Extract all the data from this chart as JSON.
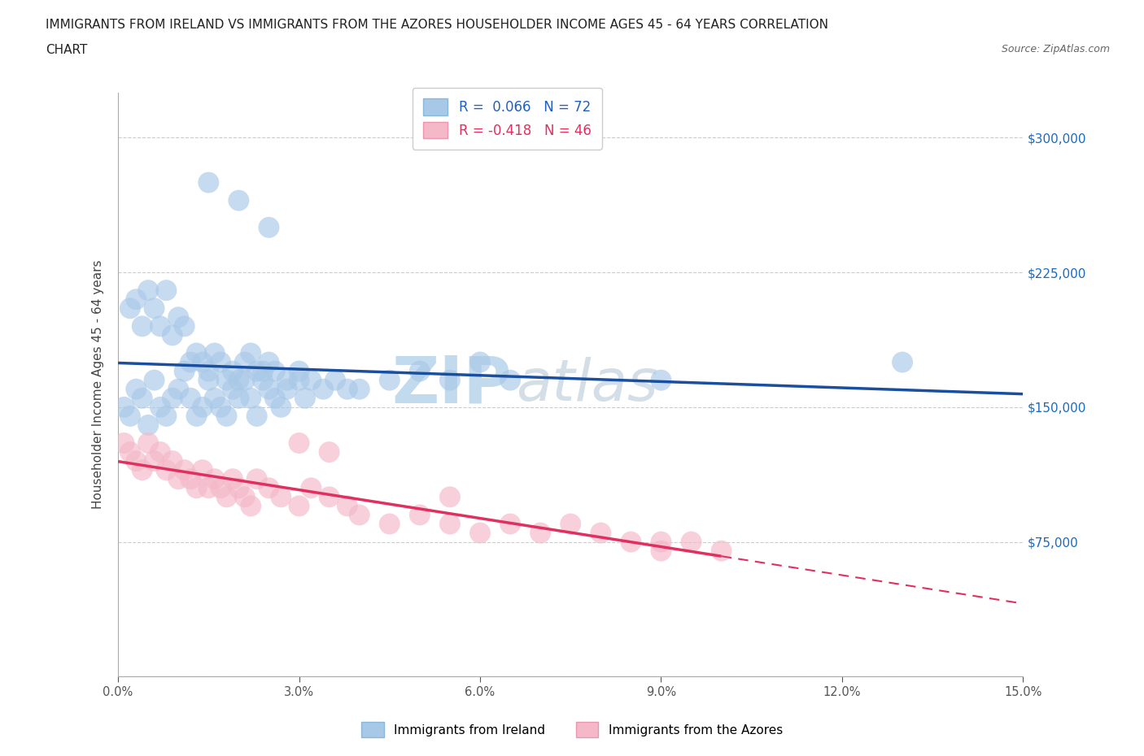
{
  "title_line1": "IMMIGRANTS FROM IRELAND VS IMMIGRANTS FROM THE AZORES HOUSEHOLDER INCOME AGES 45 - 64 YEARS CORRELATION",
  "title_line2": "CHART",
  "source": "Source: ZipAtlas.com",
  "ylabel": "Householder Income Ages 45 - 64 years",
  "watermark_part1": "ZIP",
  "watermark_part2": "atlas",
  "xlim": [
    0.0,
    0.15
  ],
  "ylim": [
    0,
    325000
  ],
  "yticks": [
    0,
    75000,
    150000,
    225000,
    300000
  ],
  "xticks": [
    0.0,
    0.03,
    0.06,
    0.09,
    0.12,
    0.15
  ],
  "ireland_color": "#a8c8e8",
  "azores_color": "#f4b8c8",
  "ireland_line_color": "#1a4fa0",
  "azores_line_color": "#e03060",
  "legend_ireland_color": "#2060c0",
  "legend_azores_color": "#e03060",
  "ireland_R": 0.066,
  "ireland_N": 72,
  "azores_R": -0.418,
  "azores_N": 46,
  "background_color": "#ffffff",
  "grid_color": "#cccccc",
  "yaxis_label_color": "#1a6abf",
  "ireland_x": [
    0.001,
    0.002,
    0.003,
    0.004,
    0.005,
    0.006,
    0.007,
    0.008,
    0.009,
    0.01,
    0.011,
    0.012,
    0.013,
    0.014,
    0.015,
    0.016,
    0.017,
    0.018,
    0.019,
    0.02,
    0.021,
    0.022,
    0.023,
    0.024,
    0.025,
    0.026,
    0.027,
    0.028,
    0.03,
    0.031,
    0.002,
    0.003,
    0.004,
    0.005,
    0.006,
    0.007,
    0.008,
    0.009,
    0.01,
    0.011,
    0.012,
    0.013,
    0.014,
    0.015,
    0.016,
    0.017,
    0.018,
    0.019,
    0.02,
    0.021,
    0.022,
    0.023,
    0.024,
    0.025,
    0.026,
    0.028,
    0.03,
    0.032,
    0.034,
    0.036,
    0.038,
    0.04,
    0.045,
    0.05,
    0.055,
    0.06,
    0.065,
    0.09,
    0.13,
    0.015,
    0.02,
    0.025
  ],
  "ireland_y": [
    150000,
    145000,
    160000,
    155000,
    140000,
    165000,
    150000,
    145000,
    155000,
    160000,
    170000,
    155000,
    145000,
    150000,
    165000,
    155000,
    150000,
    145000,
    160000,
    155000,
    165000,
    155000,
    145000,
    170000,
    160000,
    155000,
    150000,
    160000,
    165000,
    155000,
    205000,
    210000,
    195000,
    215000,
    205000,
    195000,
    215000,
    190000,
    200000,
    195000,
    175000,
    180000,
    175000,
    170000,
    180000,
    175000,
    165000,
    170000,
    165000,
    175000,
    180000,
    170000,
    165000,
    175000,
    170000,
    165000,
    170000,
    165000,
    160000,
    165000,
    160000,
    160000,
    165000,
    170000,
    165000,
    175000,
    165000,
    165000,
    175000,
    275000,
    265000,
    250000
  ],
  "azores_x": [
    0.001,
    0.002,
    0.003,
    0.004,
    0.005,
    0.006,
    0.007,
    0.008,
    0.009,
    0.01,
    0.011,
    0.012,
    0.013,
    0.014,
    0.015,
    0.016,
    0.017,
    0.018,
    0.019,
    0.02,
    0.021,
    0.022,
    0.023,
    0.025,
    0.027,
    0.03,
    0.032,
    0.035,
    0.038,
    0.04,
    0.045,
    0.05,
    0.055,
    0.06,
    0.065,
    0.07,
    0.075,
    0.08,
    0.085,
    0.09,
    0.095,
    0.1,
    0.03,
    0.035,
    0.055,
    0.09
  ],
  "azores_y": [
    130000,
    125000,
    120000,
    115000,
    130000,
    120000,
    125000,
    115000,
    120000,
    110000,
    115000,
    110000,
    105000,
    115000,
    105000,
    110000,
    105000,
    100000,
    110000,
    105000,
    100000,
    95000,
    110000,
    105000,
    100000,
    95000,
    105000,
    100000,
    95000,
    90000,
    85000,
    90000,
    85000,
    80000,
    85000,
    80000,
    85000,
    80000,
    75000,
    70000,
    75000,
    70000,
    130000,
    125000,
    100000,
    75000
  ]
}
